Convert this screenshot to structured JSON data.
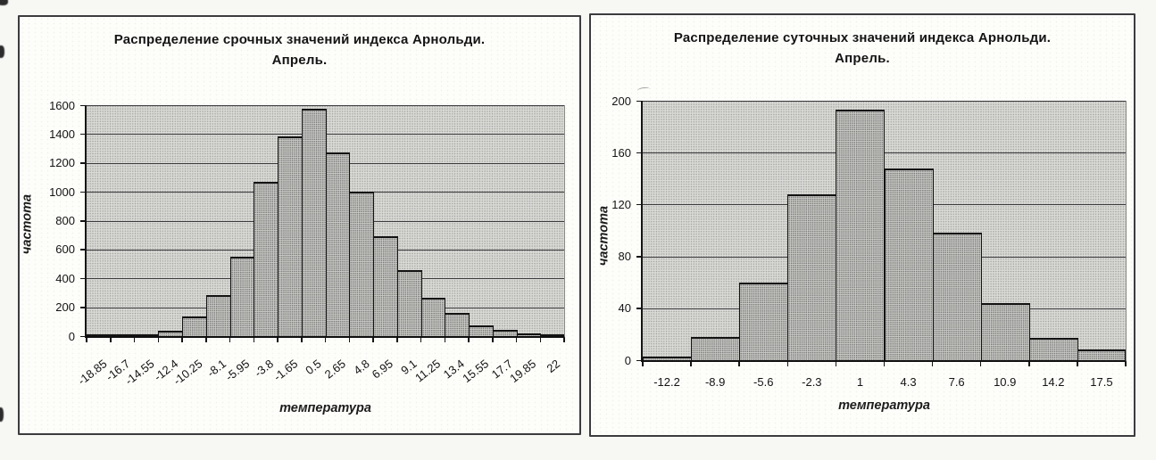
{
  "document": {
    "kind": "scanned page with two histograms",
    "background": "#f7f7f4",
    "panel_border_color": "#3d3d40",
    "plot_background": "#d6d6d3",
    "bar_fill": "#c6c6c3",
    "bar_border": "#141414",
    "text_color": "#161616"
  },
  "chart_data": [
    {
      "type": "bar",
      "title": "Распределение срочных значений индекса Арнольди.",
      "subtitle": "Апрель.",
      "xlabel": "температура",
      "ylabel": "частота",
      "categories": [
        "-18.85",
        "-16.7",
        "-14.55",
        "-12.4",
        "-10.25",
        "-8.1",
        "-5.95",
        "-3.8",
        "-1.65",
        "0.5",
        "2.65",
        "4.8",
        "6.95",
        "9.1",
        "11.25",
        "13.4",
        "15.55",
        "17.7",
        "19.85",
        "22"
      ],
      "values": [
        5,
        8,
        12,
        40,
        135,
        285,
        550,
        1070,
        1385,
        1575,
        1275,
        1000,
        695,
        455,
        265,
        160,
        75,
        42,
        20,
        8
      ],
      "ylim": [
        0,
        1600
      ],
      "ytick_step": 200,
      "yticks": [
        0,
        200,
        400,
        600,
        800,
        1000,
        1200,
        1400,
        1600
      ],
      "grid": true,
      "legend": false,
      "bar_gap": 0,
      "x_label_rotation_deg": 38
    },
    {
      "type": "bar",
      "title": "Распределение суточных значений индекса Арнольди.",
      "subtitle": "Апрель.",
      "xlabel": "температура",
      "ylabel": "частота",
      "categories": [
        "-12.2",
        "-8.9",
        "-5.6",
        "-2.3",
        "1",
        "4.3",
        "7.6",
        "10.9",
        "14.2",
        "17.5"
      ],
      "values": [
        3,
        18,
        60,
        128,
        193,
        148,
        98,
        44,
        17,
        8
      ],
      "ylim": [
        0,
        200
      ],
      "ytick_step": 40,
      "yticks": [
        0,
        40,
        80,
        120,
        160,
        200
      ],
      "grid": true,
      "legend": false,
      "bar_gap": 0,
      "x_label_rotation_deg": 0
    }
  ]
}
